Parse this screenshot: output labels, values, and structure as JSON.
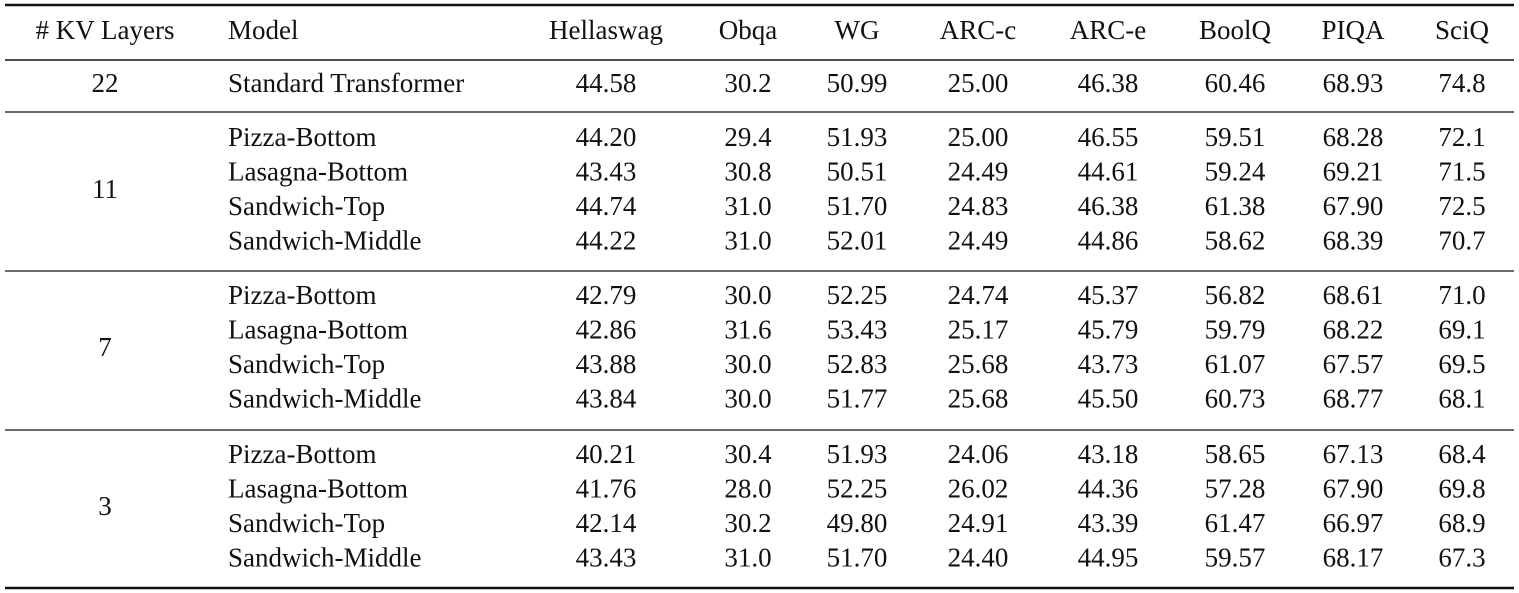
{
  "table": {
    "header": [
      "# KV Layers",
      "Model",
      "Hellaswag",
      "Obqa",
      "WG",
      "ARC-c",
      "ARC-e",
      "BoolQ",
      "PIQA",
      "SciQ"
    ],
    "groups": [
      {
        "kv_layers": "22",
        "rows": [
          {
            "model": "Standard Transformer",
            "scores": [
              "44.58",
              "30.2",
              "50.99",
              "25.00",
              "46.38",
              "60.46",
              "68.93",
              "74.8"
            ]
          }
        ]
      },
      {
        "kv_layers": "11",
        "rows": [
          {
            "model": "Pizza-Bottom",
            "scores": [
              "44.20",
              "29.4",
              "51.93",
              "25.00",
              "46.55",
              "59.51",
              "68.28",
              "72.1"
            ]
          },
          {
            "model": "Lasagna-Bottom",
            "scores": [
              "43.43",
              "30.8",
              "50.51",
              "24.49",
              "44.61",
              "59.24",
              "69.21",
              "71.5"
            ]
          },
          {
            "model": "Sandwich-Top",
            "scores": [
              "44.74",
              "31.0",
              "51.70",
              "24.83",
              "46.38",
              "61.38",
              "67.90",
              "72.5"
            ]
          },
          {
            "model": "Sandwich-Middle",
            "scores": [
              "44.22",
              "31.0",
              "52.01",
              "24.49",
              "44.86",
              "58.62",
              "68.39",
              "70.7"
            ]
          }
        ]
      },
      {
        "kv_layers": "7",
        "rows": [
          {
            "model": "Pizza-Bottom",
            "scores": [
              "42.79",
              "30.0",
              "52.25",
              "24.74",
              "45.37",
              "56.82",
              "68.61",
              "71.0"
            ]
          },
          {
            "model": "Lasagna-Bottom",
            "scores": [
              "42.86",
              "31.6",
              "53.43",
              "25.17",
              "45.79",
              "59.79",
              "68.22",
              "69.1"
            ]
          },
          {
            "model": "Sandwich-Top",
            "scores": [
              "43.88",
              "30.0",
              "52.83",
              "25.68",
              "43.73",
              "61.07",
              "67.57",
              "69.5"
            ]
          },
          {
            "model": "Sandwich-Middle",
            "scores": [
              "43.84",
              "30.0",
              "51.77",
              "25.68",
              "45.50",
              "60.73",
              "68.77",
              "68.1"
            ]
          }
        ]
      },
      {
        "kv_layers": "3",
        "rows": [
          {
            "model": "Pizza-Bottom",
            "scores": [
              "40.21",
              "30.4",
              "51.93",
              "24.06",
              "43.18",
              "58.65",
              "67.13",
              "68.4"
            ]
          },
          {
            "model": "Lasagna-Bottom",
            "scores": [
              "41.76",
              "28.0",
              "52.25",
              "26.02",
              "44.36",
              "57.28",
              "67.90",
              "69.8"
            ]
          },
          {
            "model": "Sandwich-Top",
            "scores": [
              "42.14",
              "30.2",
              "49.80",
              "24.91",
              "43.39",
              "61.47",
              "66.97",
              "68.9"
            ]
          },
          {
            "model": "Sandwich-Middle",
            "scores": [
              "43.43",
              "31.0",
              "51.70",
              "24.40",
              "44.95",
              "59.57",
              "68.17",
              "67.3"
            ]
          }
        ]
      }
    ]
  }
}
